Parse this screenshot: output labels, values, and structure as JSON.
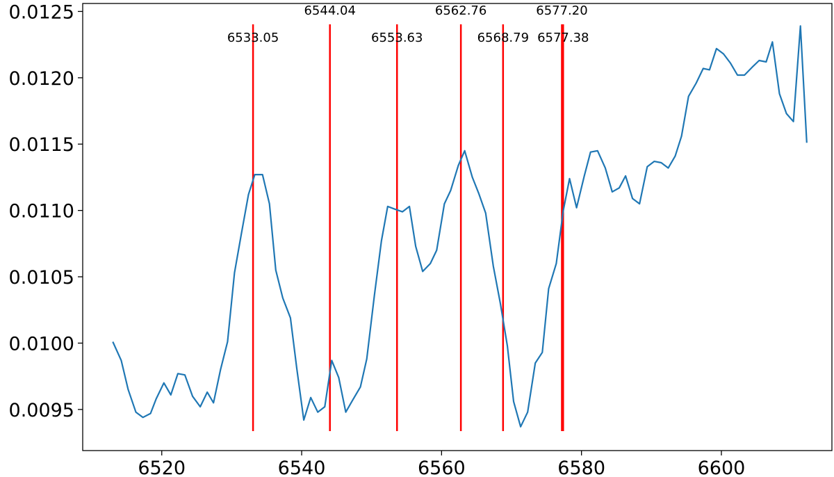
{
  "chart_data": {
    "type": "line",
    "title": "",
    "xlabel": "",
    "ylabel": "",
    "xlim": [
      6508.7,
      6615.8
    ],
    "ylim": [
      0.00919,
      0.01256
    ],
    "x_ticks": [
      6520,
      6540,
      6560,
      6580,
      6600
    ],
    "y_ticks": [
      0.0095,
      0.01,
      0.0105,
      0.011,
      0.0115,
      0.012,
      0.0125
    ],
    "y_tick_labels": [
      "0.0095",
      "0.0100",
      "0.0105",
      "0.0110",
      "0.0115",
      "0.0120",
      "0.0125"
    ],
    "grid": false,
    "line_color": "#1f77b4",
    "marker_color": "#ff0000",
    "series": [
      {
        "x": [
          6513.0,
          6514.2,
          6515.2,
          6516.3,
          6517.3,
          6518.4,
          6519.2,
          6520.3,
          6521.3,
          6522.3,
          6523.3,
          6524.4,
          6525.5,
          6526.5,
          6527.4,
          6528.4,
          6529.4,
          6530.4,
          6531.4,
          6532.4,
          6533.3,
          6534.4,
          6535.4,
          6536.3,
          6537.3,
          6538.4,
          6539.3,
          6540.3,
          6541.3,
          6542.3,
          6543.3,
          6544.3,
          6545.3,
          6546.3,
          6547.4,
          6548.4,
          6549.3,
          6550.4,
          6551.4,
          6552.3,
          6553.3,
          6554.4,
          6555.4,
          6556.3,
          6557.3,
          6558.4,
          6559.3,
          6560.4,
          6561.3,
          6562.4,
          6563.3,
          6564.4,
          6565.3,
          6566.3,
          6567.4,
          6568.4,
          6569.4,
          6570.3,
          6571.3,
          6572.3,
          6573.4,
          6574.4,
          6575.3,
          6576.4,
          6577.4,
          6578.3,
          6579.3,
          6580.4,
          6581.3,
          6582.3,
          6583.4,
          6584.4,
          6585.4,
          6586.3,
          6587.3,
          6588.3,
          6589.4,
          6590.4,
          6591.4,
          6592.4,
          6593.4,
          6594.3,
          6595.3,
          6596.4,
          6597.4,
          6598.3,
          6599.3,
          6600.3,
          6601.3,
          6602.3,
          6603.3,
          6604.4,
          6605.4,
          6606.4,
          6607.3,
          6608.3,
          6609.3,
          6610.3,
          6611.3,
          6612.2
        ],
        "y": [
          0.01001,
          0.00987,
          0.00965,
          0.00948,
          0.00944,
          0.00947,
          0.00958,
          0.0097,
          0.00961,
          0.00977,
          0.00976,
          0.0096,
          0.00952,
          0.00963,
          0.00955,
          0.0098,
          0.01001,
          0.01053,
          0.01083,
          0.01112,
          0.01127,
          0.01127,
          0.01105,
          0.01055,
          0.01034,
          0.01019,
          0.00981,
          0.00942,
          0.00959,
          0.00948,
          0.00952,
          0.00987,
          0.00974,
          0.00948,
          0.00958,
          0.00967,
          0.00988,
          0.01036,
          0.01077,
          0.01103,
          0.01101,
          0.01099,
          0.01103,
          0.01073,
          0.01054,
          0.0106,
          0.0107,
          0.01105,
          0.01115,
          0.01134,
          0.01145,
          0.01125,
          0.01113,
          0.01098,
          0.01058,
          0.0103,
          0.00998,
          0.00956,
          0.00937,
          0.00948,
          0.00985,
          0.00993,
          0.01041,
          0.0106,
          0.011,
          0.01124,
          0.01102,
          0.01126,
          0.01144,
          0.01145,
          0.01132,
          0.01114,
          0.01117,
          0.01126,
          0.01109,
          0.01105,
          0.01133,
          0.01137,
          0.01136,
          0.01132,
          0.01141,
          0.01156,
          0.01186,
          0.01196,
          0.01207,
          0.01206,
          0.01222,
          0.01218,
          0.01211,
          0.01202,
          0.01202,
          0.01208,
          0.01213,
          0.01212,
          0.01227,
          0.01188,
          0.01173,
          0.01167,
          0.01239,
          0.01151
        ]
      }
    ],
    "marker_lines": [
      {
        "x": 6533.05,
        "label": "6533.05",
        "row": "lower"
      },
      {
        "x": 6544.04,
        "label": "6544.04",
        "row": "upper"
      },
      {
        "x": 6553.63,
        "label": "6553.63",
        "row": "lower"
      },
      {
        "x": 6562.76,
        "label": "6562.76",
        "row": "upper"
      },
      {
        "x": 6568.79,
        "label": "6568.79",
        "row": "lower"
      },
      {
        "x": 6577.2,
        "label": "6577.20",
        "row": "upper"
      },
      {
        "x": 6577.38,
        "label": "6577.38",
        "row": "lower"
      }
    ]
  }
}
